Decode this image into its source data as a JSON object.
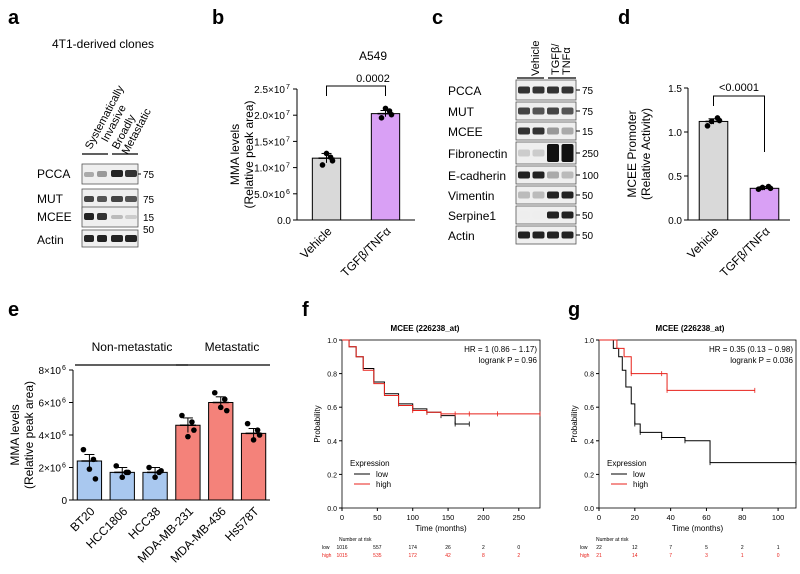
{
  "colors": {
    "vehicle": "#d9d9d9",
    "tgf": "#d9a0f5",
    "nonmet": "#a9c8ef",
    "met": "#f4827a",
    "km_low": "#000000",
    "km_high": "#e8221b"
  },
  "panels": {
    "a": {
      "letter": "a",
      "title": "4T1-derived clones",
      "groups": [
        "Systematically Invasive",
        "Broadly Metastatic"
      ],
      "group_lines": [
        [
          "Systematically",
          "Invasive"
        ],
        [
          "Broadly",
          "Metastatic"
        ]
      ],
      "rows": [
        {
          "label": "PCCA",
          "mw": "75"
        },
        {
          "label": "MUT",
          "mw": "75"
        },
        {
          "label": "MCEE",
          "mw": "15"
        },
        {
          "label": "Actin",
          "mw": "50"
        }
      ]
    },
    "c": {
      "letter": "c",
      "lanes": [
        "Vehicle",
        "TGFβ/TNFα"
      ],
      "tgf_lines": [
        "TGFβ/",
        "TNFα"
      ],
      "rows": [
        {
          "label": "PCCA",
          "mw": "75"
        },
        {
          "label": "MUT",
          "mw": "75"
        },
        {
          "label": "MCEE",
          "mw": "15"
        },
        {
          "label": "Fibronectin",
          "mw": "250"
        },
        {
          "label": "E-cadherin",
          "mw": "100"
        },
        {
          "label": "Vimentin",
          "mw": "50"
        },
        {
          "label": "Serpine1",
          "mw": "50"
        },
        {
          "label": "Actin",
          "mw": "50"
        }
      ]
    },
    "b": {
      "letter": "b",
      "pvalue": "0.0002"
    },
    "d": {
      "letter": "d",
      "pvalue": "<0.0001"
    },
    "e": {
      "letter": "e",
      "group1": "Non-metastatic",
      "group2": "Metastatic"
    },
    "f": {
      "letter": "f"
    },
    "g": {
      "letter": "g"
    }
  },
  "chart_data": [
    {
      "id": "b",
      "type": "bar",
      "title": "A549",
      "ylabel": "MMA levels (Relative peak area)",
      "ylabel_lines": [
        "MMA levels",
        "(Relative peak area)"
      ],
      "categories": [
        "Vehicle",
        "TGFβ/TNFα"
      ],
      "values": [
        11800000,
        20300000
      ],
      "errors": [
        900000,
        600000
      ],
      "ylim": [
        0,
        25000000
      ],
      "yticks": [
        0,
        5000000,
        10000000,
        15000000,
        20000000,
        25000000
      ],
      "ytick_labels": [
        "0.0",
        "5.0×10",
        "1.0×10",
        "1.5×10",
        "2.0×10",
        "2.5×10"
      ],
      "ytick_exp": [
        "",
        "6",
        "7",
        "7",
        "7",
        "7"
      ],
      "points": [
        [
          10500000,
          12000000,
          12700000,
          11300000
        ],
        [
          19500000,
          20800000,
          21300000,
          20100000
        ]
      ]
    },
    {
      "id": "d",
      "type": "bar",
      "ylabel": "MCEE Promoter (Relative Activity)",
      "ylabel_lines": [
        "MCEE Promoter",
        "(Relative Activity)"
      ],
      "categories": [
        "Vehicle",
        "TGFβ/TNFα"
      ],
      "values": [
        1.12,
        0.36
      ],
      "errors": [
        0.03,
        0.02
      ],
      "ylim": [
        0,
        1.5
      ],
      "yticks": [
        0,
        0.5,
        1.0,
        1.5
      ],
      "ytick_labels": [
        "0.0",
        "0.5",
        "1.0",
        "1.5"
      ],
      "points": [
        [
          1.07,
          1.12,
          1.16,
          1.13
        ],
        [
          0.35,
          0.37,
          0.38,
          0.36
        ]
      ]
    },
    {
      "id": "e",
      "type": "bar",
      "ylabel": "MMA levels (Relative peak area)",
      "ylabel_lines": [
        "MMA levels",
        "(Relative peak area)"
      ],
      "categories": [
        "BT20",
        "HCC1806",
        "HCC38",
        "MDA-MB-231",
        "MDA-MB-436",
        "Hs578T"
      ],
      "values": [
        2400000,
        1700000,
        1700000,
        4600000,
        6000000,
        4100000
      ],
      "errors": [
        400000,
        300000,
        300000,
        450000,
        350000,
        300000
      ],
      "ylim": [
        0,
        8000000
      ],
      "yticks": [
        0,
        2000000,
        4000000,
        6000000,
        8000000
      ],
      "ytick_labels": [
        "0",
        "2×10",
        "4×10",
        "6×10",
        "8×10"
      ],
      "ytick_exp": [
        "",
        "6",
        "6",
        "6",
        "6"
      ],
      "points": [
        [
          3100000,
          2500000,
          1900000,
          1300000
        ],
        [
          2100000,
          1700000,
          1400000,
          1700000
        ],
        [
          2000000,
          1700000,
          1400000,
          1800000
        ],
        [
          5200000,
          4800000,
          3900000,
          4300000
        ],
        [
          6600000,
          6200000,
          5700000,
          5500000
        ],
        [
          4700000,
          4300000,
          3700000,
          4000000
        ]
      ]
    },
    {
      "id": "f",
      "type": "line",
      "title": "MCEE (226238_at)",
      "xlabel": "Time (months)",
      "ylabel": "Probability",
      "stat1": "HR = 1 (0.86 − 1.17)",
      "stat2": "logrank P = 0.96",
      "xlim": [
        0,
        280
      ],
      "xticks": [
        0,
        50,
        100,
        150,
        200,
        250
      ],
      "ylim": [
        0,
        1.0
      ],
      "yticks": [
        0,
        0.2,
        0.4,
        0.6,
        0.8,
        1.0
      ],
      "ytick_labels": [
        "0.0",
        "0.2",
        "0.4",
        "0.6",
        "0.8",
        "1.0"
      ],
      "legend_title": "Expression",
      "series": [
        {
          "name": "low",
          "x": [
            0,
            10,
            20,
            30,
            45,
            60,
            80,
            100,
            120,
            140,
            160,
            180
          ],
          "y": [
            1.0,
            0.96,
            0.9,
            0.83,
            0.75,
            0.68,
            0.62,
            0.59,
            0.57,
            0.55,
            0.5,
            0.5
          ]
        },
        {
          "name": "high",
          "x": [
            0,
            10,
            20,
            30,
            45,
            60,
            80,
            100,
            120,
            140,
            160,
            180,
            220,
            280
          ],
          "y": [
            1.0,
            0.96,
            0.9,
            0.82,
            0.74,
            0.67,
            0.61,
            0.58,
            0.57,
            0.56,
            0.56,
            0.56,
            0.56,
            0.56
          ]
        }
      ],
      "risk_header": "Number at risk",
      "risk_rows": [
        {
          "name": "low",
          "values": [
            "1016",
            "557",
            "174",
            "26",
            "2",
            "0"
          ]
        },
        {
          "name": "high",
          "values": [
            "1015",
            "535",
            "172",
            "42",
            "8",
            "2"
          ]
        }
      ]
    },
    {
      "id": "g",
      "type": "line",
      "title": "MCEE (226238_at)",
      "xlabel": "Time (months)",
      "ylabel": "Probability",
      "stat1": "HR = 0.35 (0.13 − 0.98)",
      "stat2": "logrank P = 0.036",
      "xlim": [
        0,
        110
      ],
      "xticks": [
        0,
        20,
        40,
        60,
        80,
        100
      ],
      "ylim": [
        0,
        1.0
      ],
      "yticks": [
        0,
        0.2,
        0.4,
        0.6,
        0.8,
        1.0
      ],
      "ytick_labels": [
        "0.0",
        "0.2",
        "0.4",
        "0.6",
        "0.8",
        "1.0"
      ],
      "legend_title": "Expression",
      "series": [
        {
          "name": "low",
          "x": [
            0,
            8,
            11,
            13,
            15,
            18,
            20,
            23,
            35,
            48,
            62,
            110
          ],
          "y": [
            1.0,
            0.95,
            0.9,
            0.82,
            0.72,
            0.62,
            0.5,
            0.45,
            0.42,
            0.4,
            0.27,
            0.27
          ]
        },
        {
          "name": "high",
          "x": [
            0,
            10,
            14,
            18,
            35,
            38,
            87
          ],
          "y": [
            1.0,
            0.95,
            0.9,
            0.8,
            0.8,
            0.7,
            0.7
          ]
        }
      ],
      "risk_header": "Number at risk",
      "risk_rows": [
        {
          "name": "low",
          "values": [
            "22",
            "12",
            "7",
            "5",
            "2",
            "1"
          ]
        },
        {
          "name": "high",
          "values": [
            "21",
            "14",
            "7",
            "3",
            "1",
            "0"
          ]
        }
      ]
    }
  ]
}
